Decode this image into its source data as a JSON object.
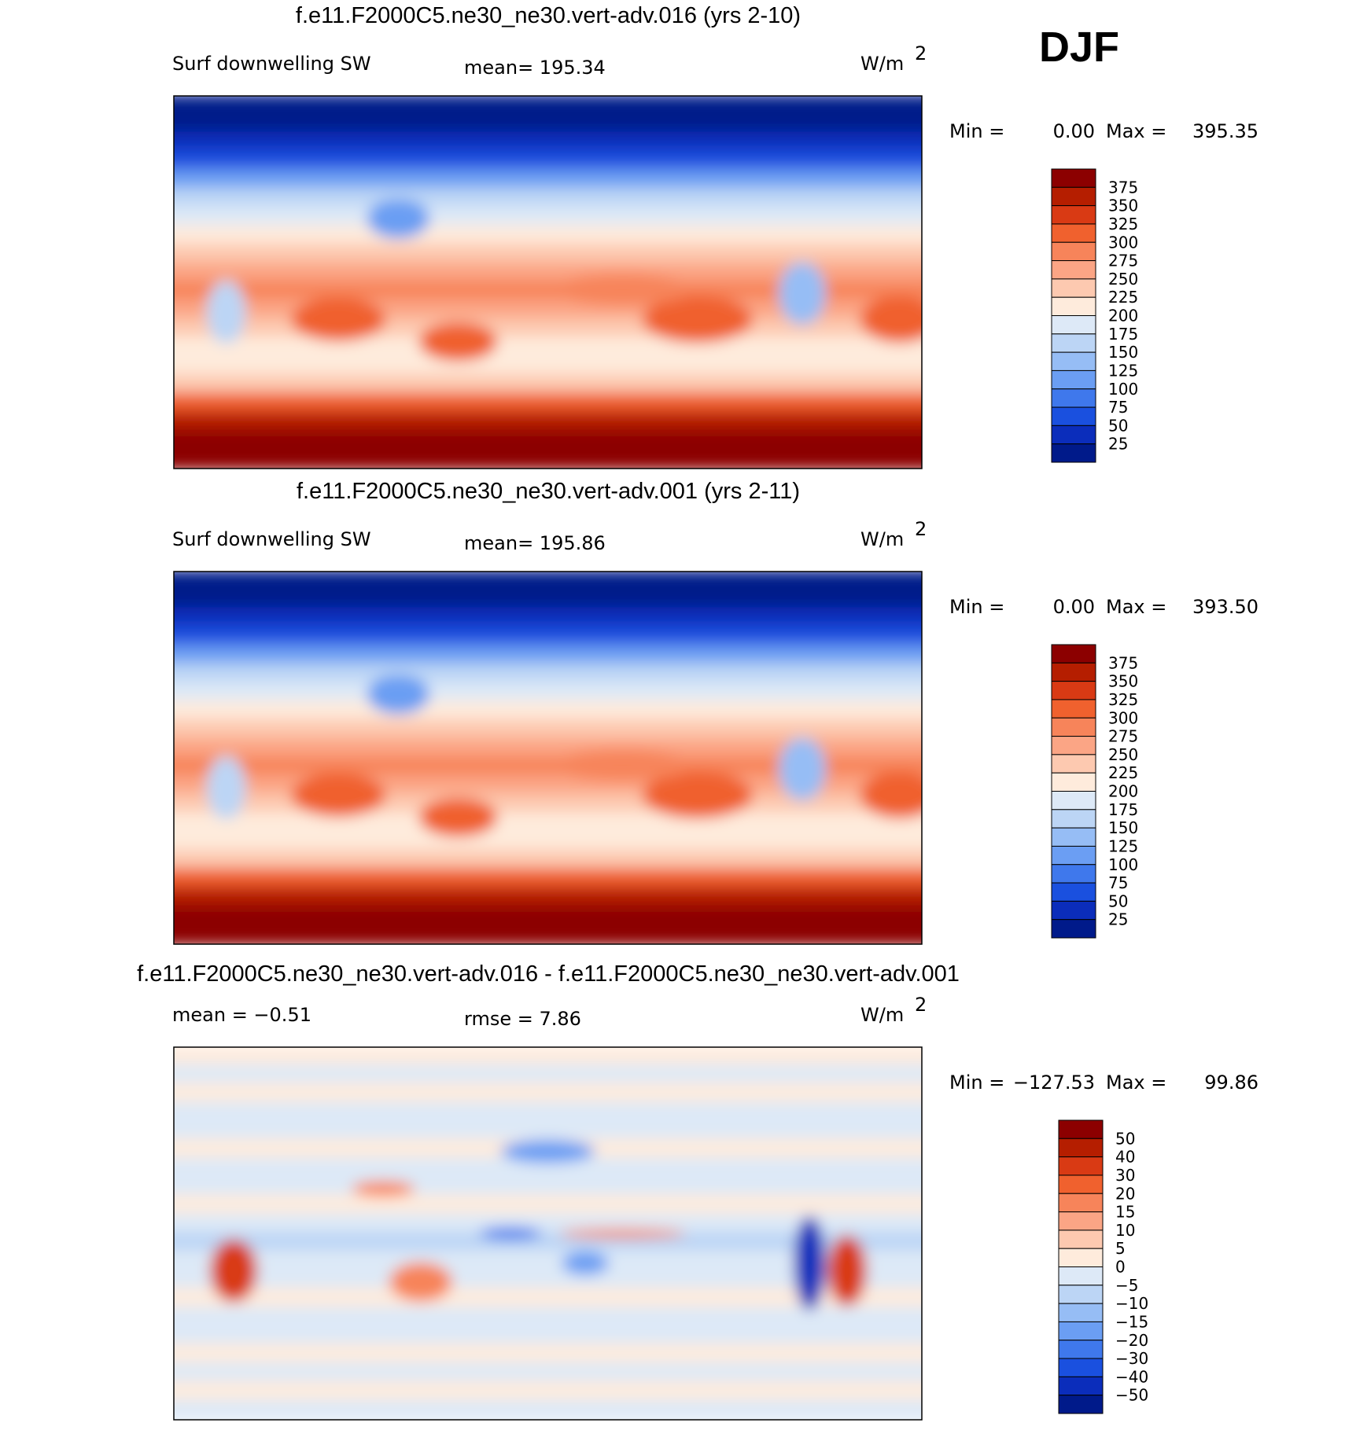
{
  "header": {
    "season": "DJF"
  },
  "panels": [
    {
      "title": "f.e11.F2000C5.ne30_ne30.vert-adv.016 (yrs 2-10)",
      "left_label": "Surf downwelling SW",
      "center_label": "mean=  195.34",
      "units_label": "W/m",
      "units_sup": "2",
      "min_label": "Min =",
      "min_value": "0.00",
      "max_label": "Max =",
      "max_value": "395.35",
      "colorbar": {
        "colors": [
          "#8c0000",
          "#b51e00",
          "#d93a14",
          "#f0612e",
          "#f7845a",
          "#fba585",
          "#fdc9b0",
          "#feebdc",
          "#dde9f7",
          "#bcd5f5",
          "#96bdf5",
          "#6b9ef3",
          "#3f78ec",
          "#1a50df",
          "#0b2dbb",
          "#001a8a"
        ],
        "labels": [
          "375",
          "350",
          "325",
          "300",
          "275",
          "250",
          "225",
          "200",
          "175",
          "150",
          "125",
          "100",
          "75",
          "50",
          "25"
        ]
      }
    },
    {
      "title": "f.e11.F2000C5.ne30_ne30.vert-adv.001 (yrs 2-11)",
      "left_label": "Surf downwelling SW",
      "center_label": "mean=  195.86",
      "units_label": "W/m",
      "units_sup": "2",
      "min_label": "Min =",
      "min_value": "0.00",
      "max_label": "Max =",
      "max_value": "393.50",
      "colorbar": {
        "colors": [
          "#8c0000",
          "#b51e00",
          "#d93a14",
          "#f0612e",
          "#f7845a",
          "#fba585",
          "#fdc9b0",
          "#feebdc",
          "#dde9f7",
          "#bcd5f5",
          "#96bdf5",
          "#6b9ef3",
          "#3f78ec",
          "#1a50df",
          "#0b2dbb",
          "#001a8a"
        ],
        "labels": [
          "375",
          "350",
          "325",
          "300",
          "275",
          "250",
          "225",
          "200",
          "175",
          "150",
          "125",
          "100",
          "75",
          "50",
          "25"
        ]
      }
    },
    {
      "title": "f.e11.F2000C5.ne30_ne30.vert-adv.016 - f.e11.F2000C5.ne30_ne30.vert-adv.001",
      "left_label": "mean =   −0.51",
      "center_label": "rmse =    7.86",
      "units_label": "W/m",
      "units_sup": "2",
      "min_label": "Min =",
      "min_value": "−127.53",
      "max_label": "Max =",
      "max_value": "99.86",
      "colorbar": {
        "colors": [
          "#8c0000",
          "#b51e00",
          "#d93a14",
          "#f0612e",
          "#f7845a",
          "#fba585",
          "#fdc9b0",
          "#feebdc",
          "#dde9f7",
          "#bcd5f5",
          "#96bdf5",
          "#6b9ef3",
          "#3f78ec",
          "#1a50df",
          "#0b2dbb",
          "#001a8a"
        ],
        "labels": [
          "50",
          "40",
          "30",
          "20",
          "15",
          "10",
          "5",
          "0",
          "−5",
          "−10",
          "−15",
          "−20",
          "−30",
          "−40",
          "−50"
        ]
      }
    }
  ]
}
